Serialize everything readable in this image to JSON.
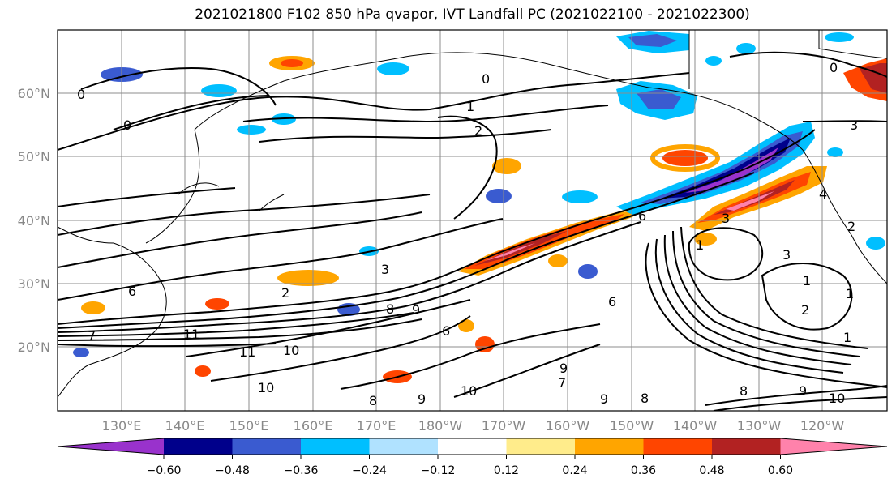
{
  "title": "2021021800 F102 850 hPa qvapor, IVT Landfall PC (2021022100 - 2021022300)",
  "map": {
    "lat_labels": [
      "60°N",
      "50°N",
      "40°N",
      "30°N",
      "20°N"
    ],
    "lon_labels": [
      "130°E",
      "140°E",
      "150°E",
      "160°E",
      "170°E",
      "180°W",
      "170°W",
      "160°W",
      "150°W",
      "140°W",
      "130°W",
      "120°W"
    ],
    "contour_labels": [
      "0",
      "1",
      "2",
      "3",
      "0",
      "0",
      "0",
      "6",
      "2",
      "3",
      "11",
      "11",
      "10",
      "8",
      "10",
      "9",
      "9",
      "6",
      "8",
      "9",
      "10",
      "7",
      "6",
      "9",
      "8",
      "8",
      "9",
      "10",
      "1",
      "3",
      "6",
      "2",
      "3",
      "2",
      "1",
      "1",
      "4",
      "1",
      "7"
    ]
  },
  "colorbar": {
    "colors": [
      "#9932cc",
      "#00008b",
      "#3a5bd0",
      "#00bfff",
      "#b0e2ff",
      "#ffffff",
      "#ffec8b",
      "#ffa500",
      "#ff4500",
      "#b22222",
      "#ff82ab"
    ],
    "tick_labels": [
      "−0.60",
      "−0.48",
      "−0.36",
      "−0.24",
      "−0.12",
      "0.12",
      "0.24",
      "0.36",
      "0.48",
      "0.60"
    ]
  }
}
